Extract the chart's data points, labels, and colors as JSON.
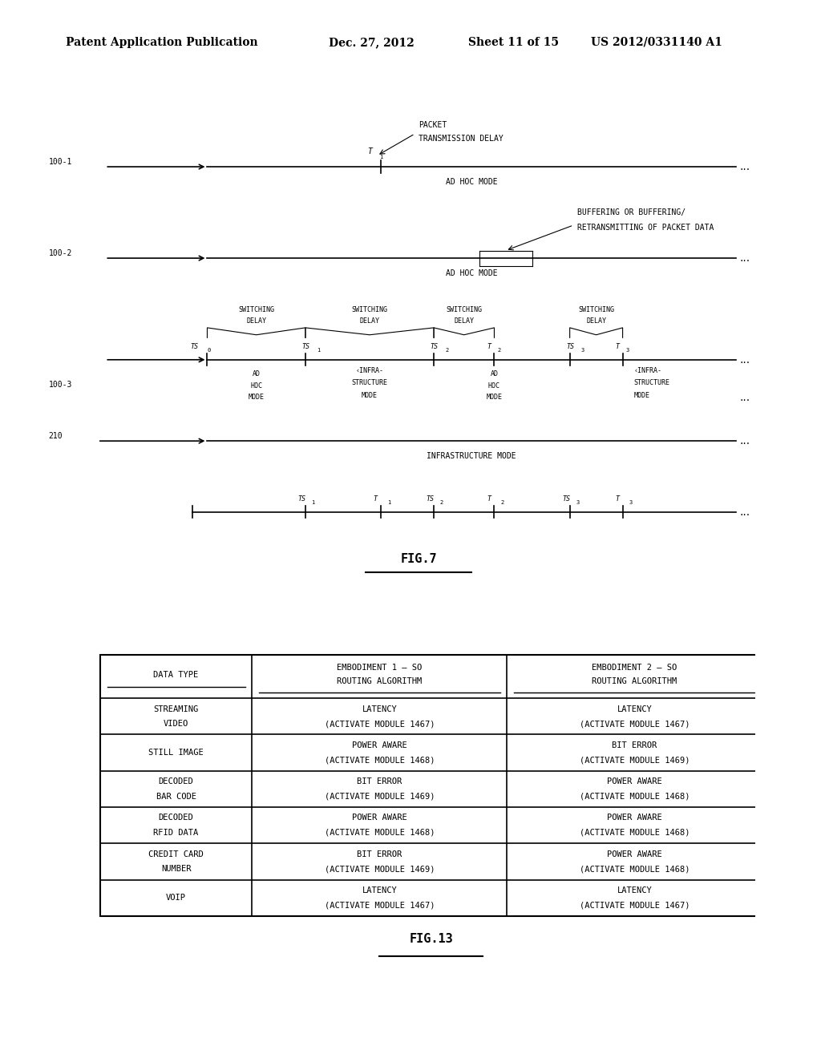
{
  "bg_color": "#ffffff",
  "header_text": "Patent Application Publication",
  "header_date": "Dec. 27, 2012",
  "header_sheet": "Sheet 11 of 15",
  "header_patent": "US 2012/0331140 A1",
  "fig7_label": "FIG.7",
  "fig13_label": "FIG.13",
  "table_headers": [
    "DATA TYPE",
    "EMBODIMENT 1 – SO\nROUTING ALGORITHM",
    "EMBODIMENT 2 – SO\nROUTING ALGORITHM"
  ],
  "table_rows": [
    [
      "STREAMING\nVIDEO",
      "LATENCY\n(ACTIVATE MODULE 1467)",
      "LATENCY\n(ACTIVATE MODULE 1467)"
    ],
    [
      "STILL IMAGE",
      "POWER AWARE\n(ACTIVATE MODULE 1468)",
      "BIT ERROR\n(ACTIVATE MODULE 1469)"
    ],
    [
      "DECODED\nBAR CODE",
      "BIT ERROR\n(ACTIVATE MODULE 1469)",
      "POWER AWARE\n(ACTIVATE MODULE 1468)"
    ],
    [
      "DECODED\nRFID DATA",
      "POWER AWARE\n(ACTIVATE MODULE 1468)",
      "POWER AWARE\n(ACTIVATE MODULE 1468)"
    ],
    [
      "CREDIT CARD\nNUMBER",
      "BIT ERROR\n(ACTIVATE MODULE 1469)",
      "POWER AWARE\n(ACTIVATE MODULE 1468)"
    ],
    [
      "VOIP",
      "LATENCY\n(ACTIVATE MODULE 1467)",
      "LATENCY\n(ACTIVATE MODULE 1467)"
    ]
  ]
}
